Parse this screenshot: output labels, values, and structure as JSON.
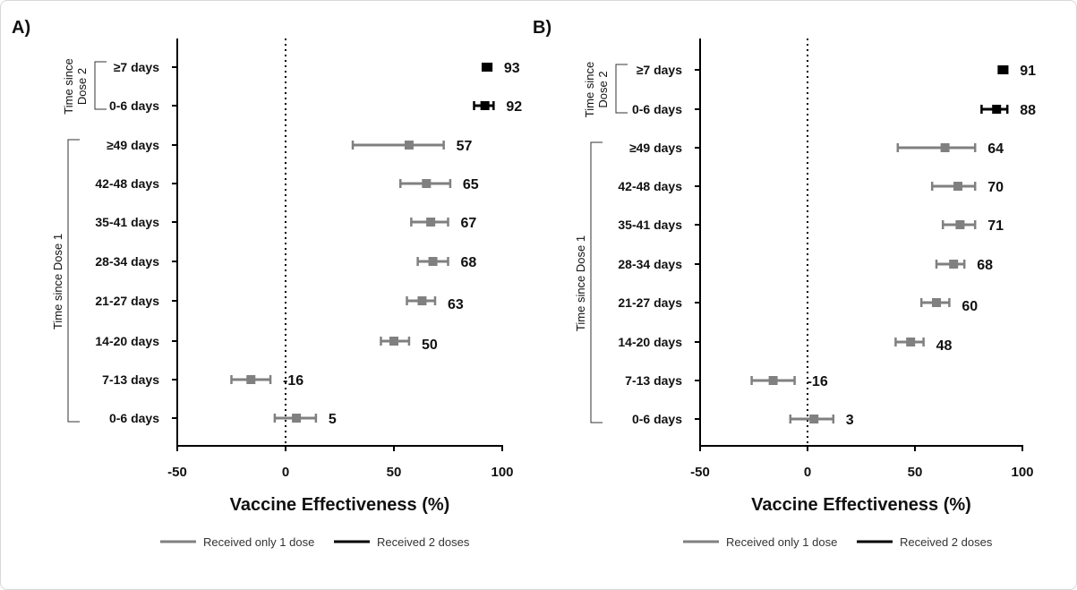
{
  "colors": {
    "one_dose": "#808080",
    "two_doses": "#000000"
  },
  "chart_data": [
    {
      "type": "forest",
      "panel_label": "A)",
      "xlabel": "Vaccine Effectiveness (%)",
      "xlim": [
        -50,
        100
      ],
      "xticks": [
        -50,
        0,
        50,
        100
      ],
      "reference_line": 0,
      "group_labels": {
        "dose2": "Time since Dose 2",
        "dose1": "Time since Dose 1"
      },
      "legend": [
        {
          "name": "Received only 1 dose",
          "color": "#808080"
        },
        {
          "name": "Received 2 doses",
          "color": "#000000"
        }
      ],
      "legend_position": "bottom",
      "rows": [
        {
          "label": "≥7 days",
          "group": "dose2",
          "value": 93,
          "ci": [
            91,
            95
          ],
          "value_label": "93"
        },
        {
          "label": "0-6 days",
          "group": "dose2",
          "value": 92,
          "ci": [
            87,
            96
          ],
          "value_label": "92"
        },
        {
          "label": "≥49 days",
          "group": "dose1",
          "value": 57,
          "ci": [
            31,
            73
          ],
          "value_label": "57"
        },
        {
          "label": "42-48 days",
          "group": "dose1",
          "value": 65,
          "ci": [
            53,
            76
          ],
          "value_label": "65"
        },
        {
          "label": "35-41 days",
          "group": "dose1",
          "value": 67,
          "ci": [
            58,
            75
          ],
          "value_label": "67"
        },
        {
          "label": "28-34 days",
          "group": "dose1",
          "value": 68,
          "ci": [
            61,
            75
          ],
          "value_label": "68"
        },
        {
          "label": "21-27 days",
          "group": "dose1",
          "value": 63,
          "ci": [
            56,
            69
          ],
          "value_label": "63"
        },
        {
          "label": "14-20 days",
          "group": "dose1",
          "value": 50,
          "ci": [
            44,
            57
          ],
          "value_label": "50"
        },
        {
          "label": "7-13 days",
          "group": "dose1",
          "value": -16,
          "ci": [
            -25,
            -7
          ],
          "value_label": "-16"
        },
        {
          "label": "0-6 days",
          "group": "dose1",
          "value": 5,
          "ci": [
            -5,
            14
          ],
          "value_label": "5"
        }
      ]
    },
    {
      "type": "forest",
      "panel_label": "B)",
      "xlabel": "Vaccine Effectiveness (%)",
      "xlim": [
        -50,
        100
      ],
      "xticks": [
        -50,
        0,
        50,
        100
      ],
      "reference_line": 0,
      "group_labels": {
        "dose2": "Time since Dose 2",
        "dose1": "Time since Dose 1"
      },
      "legend": [
        {
          "name": "Received only 1 dose",
          "color": "#808080"
        },
        {
          "name": "Received 2 doses",
          "color": "#000000"
        }
      ],
      "legend_position": "bottom",
      "rows": [
        {
          "label": "≥7 days",
          "group": "dose2",
          "value": 91,
          "ci": [
            89,
            93
          ],
          "value_label": "91"
        },
        {
          "label": "0-6 days",
          "group": "dose2",
          "value": 88,
          "ci": [
            81,
            93
          ],
          "value_label": "88"
        },
        {
          "label": "≥49 days",
          "group": "dose1",
          "value": 64,
          "ci": [
            42,
            78
          ],
          "value_label": "64"
        },
        {
          "label": "42-48 days",
          "group": "dose1",
          "value": 70,
          "ci": [
            58,
            78
          ],
          "value_label": "70"
        },
        {
          "label": "35-41 days",
          "group": "dose1",
          "value": 71,
          "ci": [
            63,
            78
          ],
          "value_label": "71"
        },
        {
          "label": "28-34 days",
          "group": "dose1",
          "value": 68,
          "ci": [
            60,
            73
          ],
          "value_label": "68"
        },
        {
          "label": "21-27 days",
          "group": "dose1",
          "value": 60,
          "ci": [
            53,
            66
          ],
          "value_label": "60"
        },
        {
          "label": "14-20 days",
          "group": "dose1",
          "value": 48,
          "ci": [
            41,
            54
          ],
          "value_label": "48"
        },
        {
          "label": "7-13 days",
          "group": "dose1",
          "value": -16,
          "ci": [
            -26,
            -6
          ],
          "value_label": "-16"
        },
        {
          "label": "0-6 days",
          "group": "dose1",
          "value": 3,
          "ci": [
            -8,
            12
          ],
          "value_label": "3"
        }
      ]
    }
  ]
}
